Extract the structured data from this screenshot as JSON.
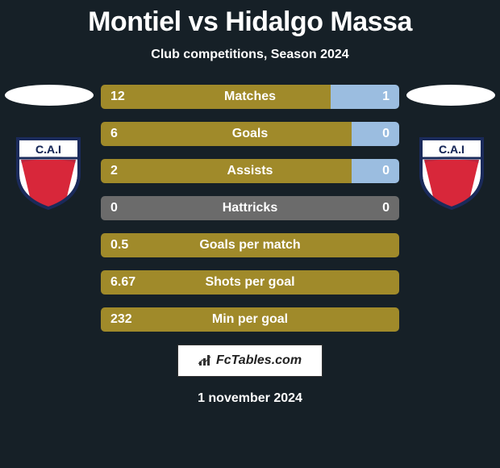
{
  "title": "Montiel vs Hidalgo Massa",
  "subtitle": "Club competitions, Season 2024",
  "date": "1 november 2024",
  "brand": "FcTables.com",
  "colors": {
    "bg": "#162027",
    "left_bar": "#a08a2a",
    "right_bar": "#9bbde0",
    "neutral_bar": "#6b6b6b",
    "matches_left": "#a08a2a",
    "matches_right": "#9bbde0"
  },
  "crest": {
    "shield_fill": "#ffffff",
    "shield_border": "#1a2a5a",
    "stripe": "#d8273a",
    "text": "C.A.I",
    "text_color": "#1a2a5a"
  },
  "rows": [
    {
      "type": "split",
      "label": "Matches",
      "left": "12",
      "right": "1",
      "left_num": 12,
      "right_num": 1,
      "left_pct": 77,
      "right_pct": 23,
      "left_color": "#a08a2a",
      "right_color": "#9bbde0"
    },
    {
      "type": "split",
      "label": "Goals",
      "left": "6",
      "right": "0",
      "left_num": 6,
      "right_num": 0,
      "left_pct": 84,
      "right_pct": 16,
      "left_color": "#a08a2a",
      "right_color": "#9bbde0"
    },
    {
      "type": "split",
      "label": "Assists",
      "left": "2",
      "right": "0",
      "left_num": 2,
      "right_num": 0,
      "left_pct": 84,
      "right_pct": 16,
      "left_color": "#a08a2a",
      "right_color": "#9bbde0"
    },
    {
      "type": "split",
      "label": "Hattricks",
      "left": "0",
      "right": "0",
      "left_num": 0,
      "right_num": 0,
      "left_pct": 50,
      "right_pct": 50,
      "left_color": "#6b6b6b",
      "right_color": "#6b6b6b"
    },
    {
      "type": "single",
      "label": "Goals per match",
      "left": "0.5",
      "bar_color": "#a08a2a"
    },
    {
      "type": "single",
      "label": "Shots per goal",
      "left": "6.67",
      "bar_color": "#a08a2a"
    },
    {
      "type": "single",
      "label": "Min per goal",
      "left": "232",
      "bar_color": "#a08a2a"
    }
  ]
}
